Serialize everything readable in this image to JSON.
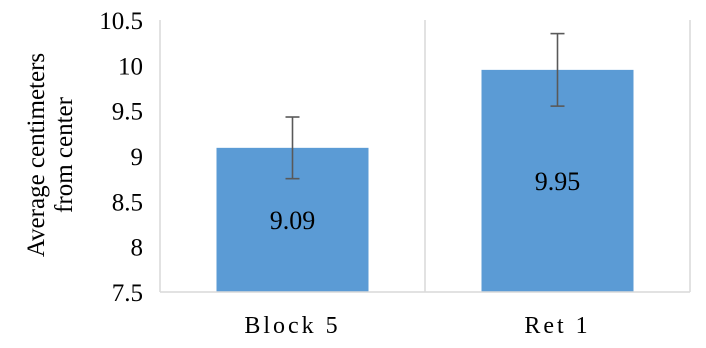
{
  "chart_data": {
    "type": "bar",
    "categories": [
      "Block 5",
      "Ret 1"
    ],
    "values": [
      9.09,
      9.95
    ],
    "data_labels": [
      "9.09",
      "9.95"
    ],
    "error_bars": [
      {
        "low": 8.75,
        "high": 9.43
      },
      {
        "low": 9.55,
        "high": 10.35
      }
    ],
    "ylabel": [
      "Average centimeters",
      "from center"
    ],
    "ylim": [
      7.5,
      10.5
    ],
    "yticks": [
      "7.5",
      "8",
      "8.5",
      "9",
      "9.5",
      "10",
      "10.5"
    ],
    "grid": false,
    "legend": "none",
    "colors": {
      "bar": "#5b9bd5",
      "axis": "#d9d9d9",
      "error_bar": "#595959"
    }
  }
}
